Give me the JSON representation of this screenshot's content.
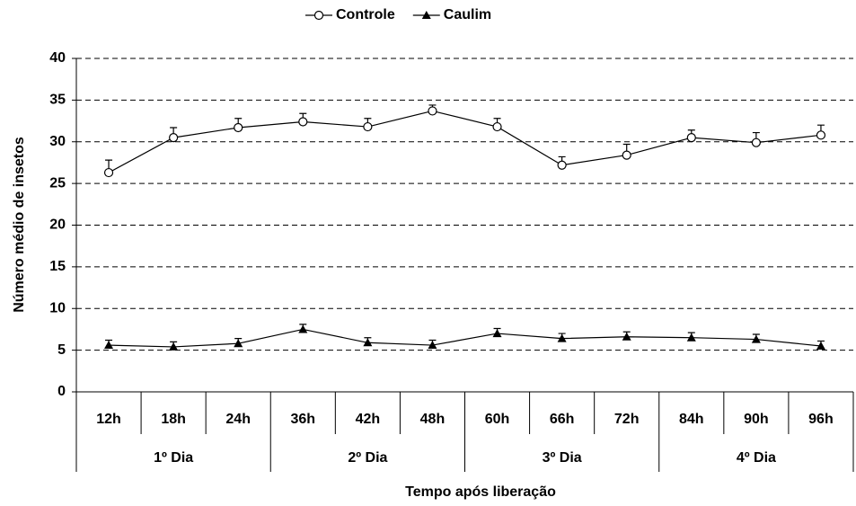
{
  "chart_data": {
    "type": "line",
    "x_label": "Tempo após liberação",
    "y_label": "Número médio de insetos",
    "categories": [
      "12h",
      "18h",
      "24h",
      "36h",
      "42h",
      "48h",
      "60h",
      "66h",
      "72h",
      "84h",
      "90h",
      "96h"
    ],
    "group_labels": [
      "1º Dia",
      "2º Dia",
      "3º Dia",
      "4º Dia"
    ],
    "series": [
      {
        "name": "Controle",
        "color": "#000000",
        "marker": "open-circle",
        "values": [
          26.3,
          30.5,
          31.7,
          32.4,
          31.8,
          33.7,
          31.8,
          27.2,
          28.4,
          30.5,
          29.9,
          30.8
        ],
        "errors": [
          1.5,
          1.2,
          1.1,
          1.0,
          1.0,
          0.7,
          1.0,
          1.0,
          1.3,
          0.9,
          1.2,
          1.2
        ]
      },
      {
        "name": "Caulim",
        "color": "#000000",
        "marker": "filled-triangle",
        "values": [
          5.6,
          5.4,
          5.8,
          7.5,
          5.9,
          5.6,
          7.0,
          6.4,
          6.6,
          6.5,
          6.3,
          5.5
        ],
        "errors": [
          0.6,
          0.6,
          0.6,
          0.6,
          0.6,
          0.6,
          0.6,
          0.6,
          0.6,
          0.6,
          0.6,
          0.6
        ]
      }
    ],
    "ylim": [
      0,
      40
    ],
    "yticks": [
      0,
      5,
      10,
      15,
      20,
      25,
      30,
      35,
      40
    ],
    "grid": true,
    "legend": "top"
  }
}
